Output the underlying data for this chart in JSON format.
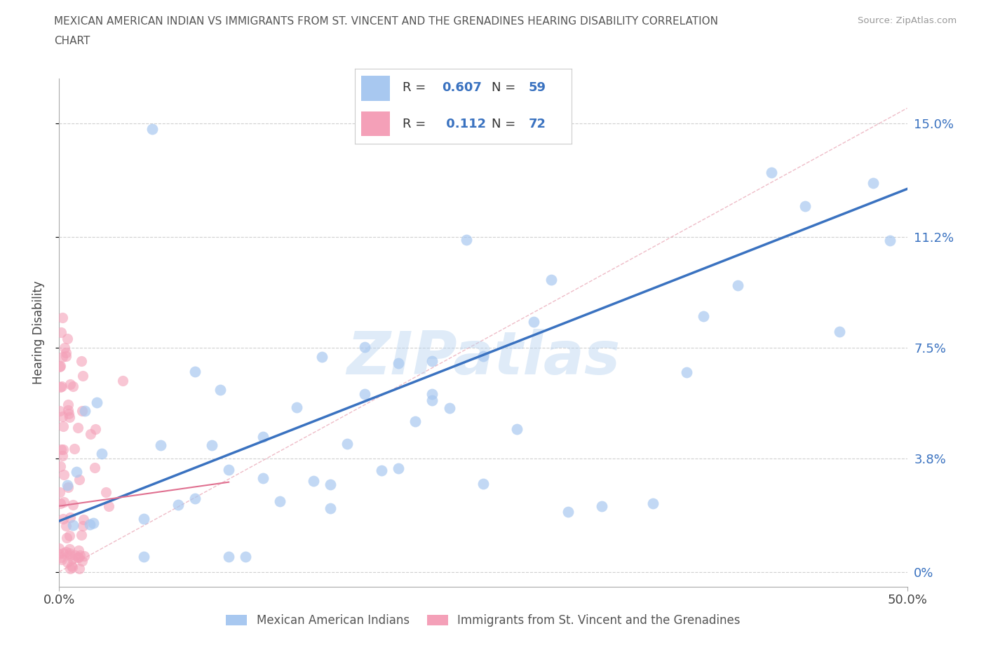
{
  "title_line1": "MEXICAN AMERICAN INDIAN VS IMMIGRANTS FROM ST. VINCENT AND THE GRENADINES HEARING DISABILITY CORRELATION",
  "title_line2": "CHART",
  "source_text": "Source: ZipAtlas.com",
  "ylabel": "Hearing Disability",
  "xlim": [
    0.0,
    0.5
  ],
  "ylim": [
    -0.005,
    0.165
  ],
  "ytick_values": [
    0.0,
    0.038,
    0.075,
    0.112,
    0.15
  ],
  "ytick_labels": [
    "0%",
    "3.8%",
    "7.5%",
    "11.2%",
    "15.0%"
  ],
  "bg_color": "#ffffff",
  "series1_color": "#a8c8f0",
  "series2_color": "#f4a0b8",
  "series1_line_color": "#3a72c0",
  "series2_line_color": "#e07090",
  "series1_name": "Mexican American Indians",
  "series2_name": "Immigrants from St. Vincent and the Grenadines",
  "R1": "0.607",
  "N1": "59",
  "R2": "0.112",
  "N2": "72",
  "legend_color": "#3a72c0",
  "grid_color": "#e0e0e0",
  "blue_line_x": [
    0.0,
    0.5
  ],
  "blue_line_y": [
    0.017,
    0.128
  ],
  "pink_line_x": [
    0.0,
    0.1
  ],
  "pink_line_y": [
    0.022,
    0.03
  ],
  "dash_line_x": [
    0.0,
    0.5
  ],
  "dash_line_y": [
    0.0,
    0.155
  ]
}
